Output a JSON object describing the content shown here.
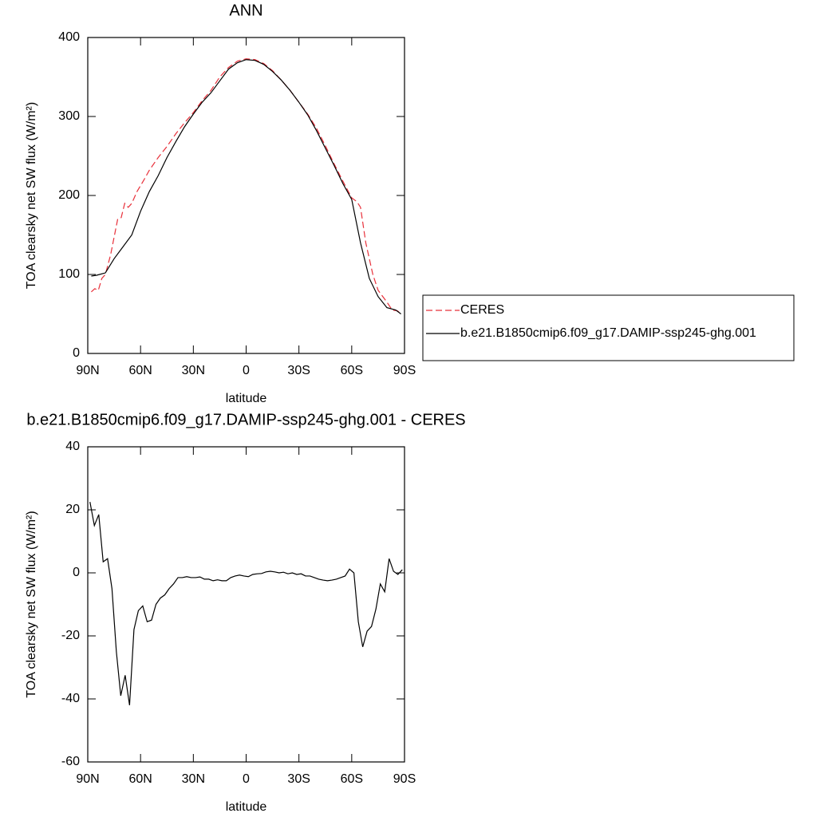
{
  "chart_data": [
    {
      "type": "line",
      "title": "ANN",
      "x_label": "latitude",
      "y_label": "TOA clearsky net SW flux (W/m²)",
      "xlim": [
        90,
        -90
      ],
      "xticks": [
        {
          "value": 90,
          "label": "90N"
        },
        {
          "value": 60,
          "label": "60N"
        },
        {
          "value": 30,
          "label": "30N"
        },
        0,
        {
          "value": -30,
          "label": "30S"
        },
        {
          "value": -60,
          "label": "60S"
        },
        {
          "value": -90,
          "label": "90S"
        }
      ],
      "ylim": [
        0,
        400
      ],
      "yticks": [
        0,
        100,
        200,
        300,
        400
      ],
      "legend": "right",
      "series": [
        {
          "name": "CERES",
          "color": "#e8303a",
          "line_style": "dashed",
          "x": [
            88,
            86,
            84,
            82,
            80,
            77,
            73,
            71,
            69,
            67,
            65,
            62,
            58,
            55,
            50,
            45,
            40,
            35,
            30,
            25,
            20,
            15,
            10,
            5,
            0,
            -5,
            -10,
            -15,
            -20,
            -25,
            -30,
            -35,
            -40,
            -45,
            -50,
            -55,
            -60,
            -63,
            -65,
            -68,
            -72,
            -75,
            -80,
            -83,
            -86,
            -88
          ],
          "values": [
            78,
            82,
            80,
            95,
            100,
            125,
            170,
            172,
            190,
            185,
            190,
            205,
            220,
            232,
            248,
            262,
            278,
            292,
            305,
            320,
            333,
            350,
            362,
            370,
            373,
            372,
            367,
            358,
            346,
            333,
            318,
            303,
            285,
            263,
            240,
            218,
            197,
            192,
            185,
            140,
            100,
            80,
            65,
            55,
            54,
            50
          ]
        },
        {
          "name": "b.e21.B1850cmip6.f09_g17.DAMIP-ssp245-ghg.001",
          "color": "#000000",
          "line_style": "solid",
          "x": [
            88,
            85,
            80,
            75,
            70,
            65,
            60,
            55,
            50,
            45,
            40,
            35,
            30,
            25,
            20,
            15,
            10,
            5,
            0,
            -5,
            -10,
            -15,
            -20,
            -25,
            -30,
            -35,
            -40,
            -45,
            -50,
            -55,
            -60,
            -65,
            -70,
            -75,
            -80,
            -85,
            -88
          ],
          "values": [
            98,
            99,
            102,
            120,
            135,
            150,
            180,
            205,
            225,
            248,
            268,
            287,
            303,
            318,
            330,
            345,
            360,
            368,
            372,
            371,
            366,
            357,
            346,
            333,
            318,
            302,
            282,
            260,
            238,
            215,
            195,
            140,
            95,
            72,
            58,
            55,
            50
          ]
        }
      ]
    },
    {
      "type": "line",
      "title": "b.e21.B1850cmip6.f09_g17.DAMIP-ssp245-ghg.001 - CERES",
      "x_label": "latitude",
      "y_label": "TOA clearsky net SW flux (W/m²)",
      "xlim": [
        90,
        -90
      ],
      "xticks": [
        {
          "value": 90,
          "label": "90N"
        },
        {
          "value": 60,
          "label": "60N"
        },
        {
          "value": 30,
          "label": "30N"
        },
        0,
        {
          "value": -30,
          "label": "30S"
        },
        {
          "value": -60,
          "label": "60S"
        },
        {
          "value": -90,
          "label": "90S"
        }
      ],
      "ylim": [
        -60,
        40
      ],
      "yticks": [
        -60,
        -40,
        -20,
        0,
        20,
        40
      ],
      "series": [
        {
          "color": "#000000",
          "line_style": "solid",
          "x": [
            88.75,
            86.25,
            83.75,
            81.25,
            78.75,
            76.25,
            73.75,
            71.25,
            68.75,
            66.25,
            63.75,
            61.25,
            58.75,
            56.25,
            53.75,
            51.25,
            48.75,
            46.25,
            43.75,
            41.25,
            38.75,
            36.25,
            33.75,
            31.25,
            28.75,
            26.25,
            23.75,
            21.25,
            18.75,
            16.25,
            13.75,
            11.25,
            8.75,
            6.25,
            3.75,
            1.25,
            -1.25,
            -3.75,
            -6.25,
            -8.75,
            -11.25,
            -13.75,
            -16.25,
            -18.75,
            -21.25,
            -23.75,
            -26.25,
            -28.75,
            -31.25,
            -33.75,
            -36.25,
            -38.75,
            -41.25,
            -43.75,
            -46.25,
            -48.75,
            -51.25,
            -53.75,
            -56.25,
            -58.75,
            -61.25,
            -63.75,
            -66.25,
            -68.75,
            -71.25,
            -73.75,
            -76.25,
            -78.75,
            -81.25,
            -83.75,
            -86.25,
            -88.75
          ],
          "values": [
            22.5,
            15,
            18.5,
            3.5,
            4.5,
            -5,
            -25,
            -39,
            -32.5,
            -42,
            -18,
            -12,
            -10.5,
            -15.5,
            -15,
            -10,
            -8,
            -7,
            -5,
            -3.5,
            -1.5,
            -1.5,
            -1.2,
            -1.5,
            -1.5,
            -1.3,
            -2,
            -2,
            -2.5,
            -2.2,
            -2.5,
            -2.5,
            -1.5,
            -1,
            -0.7,
            -1,
            -1.2,
            -0.5,
            -0.3,
            -0.2,
            0.3,
            0.5,
            0.3,
            0,
            0.2,
            -0.3,
            0,
            -0.5,
            -0.3,
            -1,
            -1,
            -1.5,
            -2,
            -2.3,
            -2.5,
            -2.3,
            -2,
            -1.5,
            -1,
            1.2,
            0,
            -15.5,
            -23.5,
            -18.5,
            -17,
            -11.5,
            -3.5,
            -6,
            4.5,
            0.5,
            -0.5,
            1
          ]
        }
      ]
    }
  ]
}
